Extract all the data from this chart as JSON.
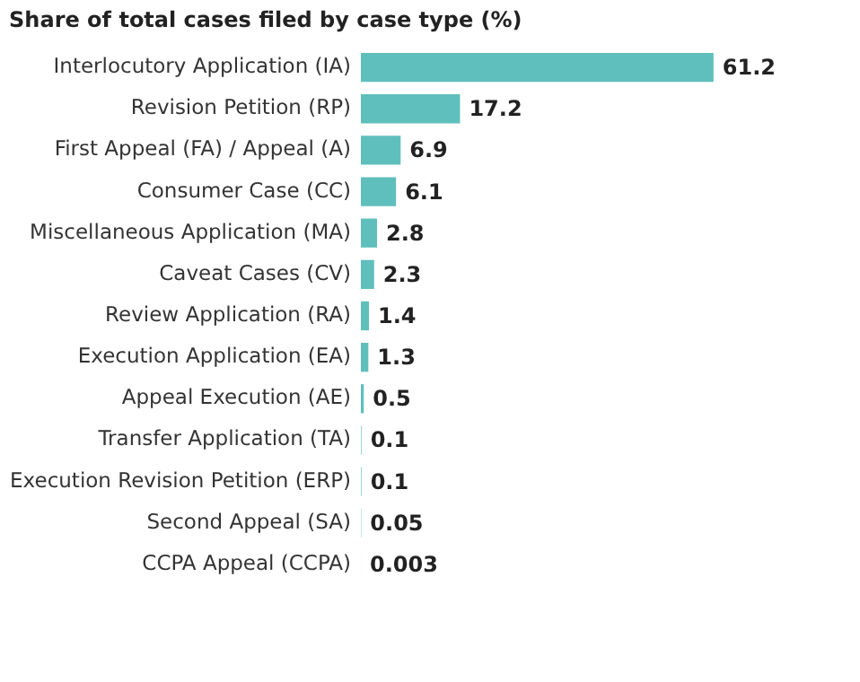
{
  "chart_data": {
    "type": "bar",
    "orientation": "horizontal",
    "title": "Share of total cases filed by case type (%)",
    "categories": [
      "Interlocutory Application (IA)",
      "Revision Petition (RP)",
      "First Appeal (FA) / Appeal (A)",
      "Consumer Case (CC)",
      "Miscellaneous Application (MA)",
      "Caveat Cases (CV)",
      "Review Application (RA)",
      "Execution Application (EA)",
      "Appeal Execution (AE)",
      "Transfer Application (TA)",
      "Execution Revision Petition (ERP)",
      "Second Appeal (SA)",
      "CCPA Appeal (CCPA)"
    ],
    "values": [
      61.2,
      17.2,
      6.9,
      6.1,
      2.8,
      2.3,
      1.4,
      1.3,
      0.5,
      0.1,
      0.1,
      0.05,
      0.003
    ],
    "color": "#5fbfbc",
    "data_labels": true
  }
}
